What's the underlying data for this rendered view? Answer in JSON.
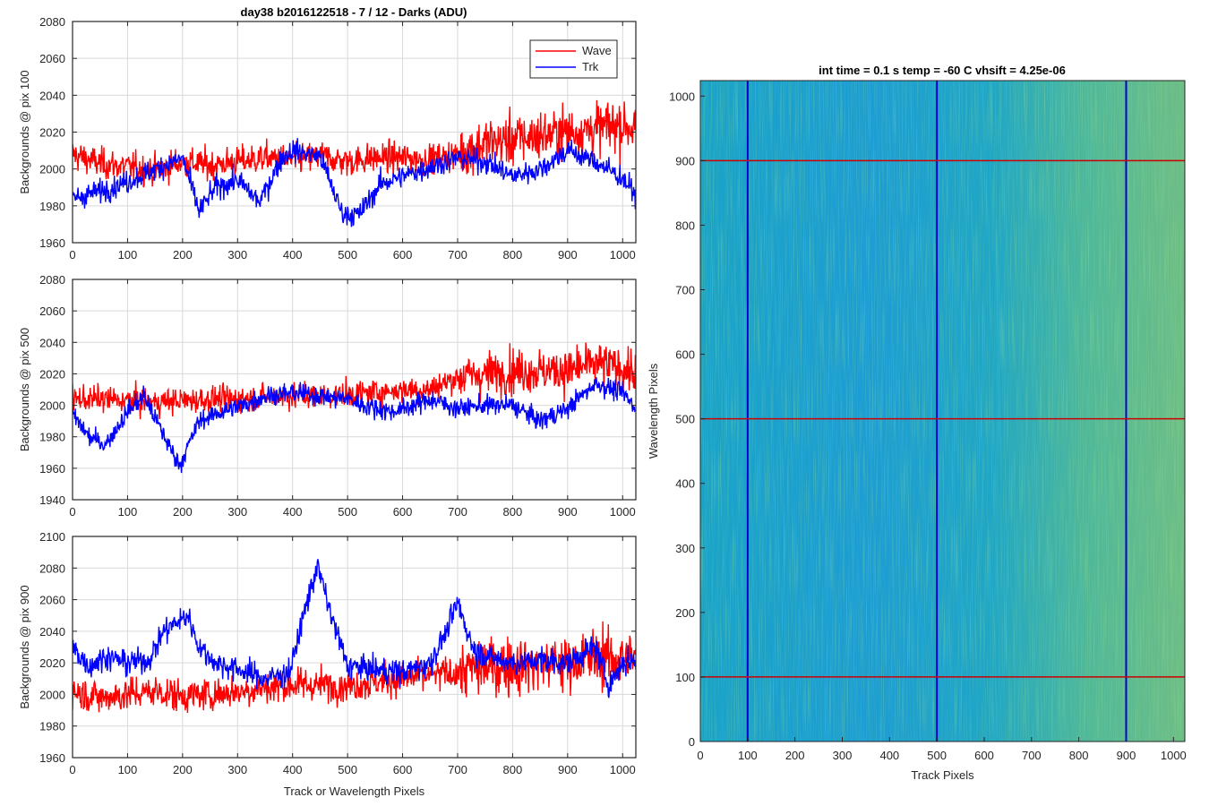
{
  "figure": {
    "main_title": "day38 b2016122518 - 7 / 12 - Darks (ADU)",
    "image_title": "int time = 0.1 s   temp = -60 C   vhsift = 4.25e-06"
  },
  "colors": {
    "wave": "#ff0000",
    "trk": "#0000ff",
    "grid": "#d9d9d9",
    "axis": "#262626"
  },
  "chart_data": [
    {
      "type": "line",
      "title": "day38 b2016122518 - 7 / 12 - Darks (ADU)",
      "xlabel": "",
      "ylabel": "Backgrounds @ pix 100",
      "xlim": [
        0,
        1024
      ],
      "ylim": [
        1960,
        2080
      ],
      "xticks": [
        0,
        100,
        200,
        300,
        400,
        500,
        600,
        700,
        800,
        900,
        1000
      ],
      "yticks": [
        1960,
        1980,
        2000,
        2020,
        2040,
        2060,
        2080
      ],
      "grid": true,
      "legend": {
        "position": "top-right",
        "entries": [
          "Wave",
          "Trk"
        ]
      },
      "series": [
        {
          "name": "Wave",
          "color": "#ff0000",
          "points": [
            [
              0,
              2008
            ],
            [
              50,
              2003
            ],
            [
              100,
              2001
            ],
            [
              150,
              1999
            ],
            [
              200,
              2004
            ],
            [
              250,
              2002
            ],
            [
              300,
              2004
            ],
            [
              350,
              2006
            ],
            [
              400,
              2005
            ],
            [
              450,
              2007
            ],
            [
              500,
              2004
            ],
            [
              550,
              2006
            ],
            [
              600,
              2006
            ],
            [
              650,
              2005
            ],
            [
              700,
              2008
            ],
            [
              750,
              2014
            ],
            [
              800,
              2016
            ],
            [
              850,
              2018
            ],
            [
              900,
              2020
            ],
            [
              950,
              2022
            ],
            [
              1000,
              2024
            ],
            [
              1024,
              2022
            ]
          ]
        },
        {
          "name": "Trk",
          "color": "#0000ff",
          "points": [
            [
              0,
              1984
            ],
            [
              50,
              1988
            ],
            [
              100,
              1993
            ],
            [
              150,
              2000
            ],
            [
              200,
              2006
            ],
            [
              230,
              1977
            ],
            [
              260,
              1990
            ],
            [
              300,
              1994
            ],
            [
              340,
              1982
            ],
            [
              380,
              2006
            ],
            [
              400,
              2010
            ],
            [
              450,
              2007
            ],
            [
              490,
              1976
            ],
            [
              520,
              1975
            ],
            [
              560,
              1992
            ],
            [
              600,
              1996
            ],
            [
              650,
              2001
            ],
            [
              700,
              2006
            ],
            [
              750,
              2004
            ],
            [
              800,
              1996
            ],
            [
              850,
              2000
            ],
            [
              900,
              2010
            ],
            [
              950,
              2004
            ],
            [
              1000,
              1995
            ],
            [
              1024,
              1986
            ]
          ]
        }
      ]
    },
    {
      "type": "line",
      "title": "",
      "xlabel": "",
      "ylabel": "Backgrounds @ pix 500",
      "xlim": [
        0,
        1024
      ],
      "ylim": [
        1940,
        2080
      ],
      "xticks": [
        0,
        100,
        200,
        300,
        400,
        500,
        600,
        700,
        800,
        900,
        1000
      ],
      "yticks": [
        1940,
        1960,
        1980,
        2000,
        2020,
        2040,
        2060,
        2080
      ],
      "grid": true,
      "series": [
        {
          "name": "Wave",
          "color": "#ff0000",
          "points": [
            [
              0,
              2004
            ],
            [
              50,
              2004
            ],
            [
              100,
              2003
            ],
            [
              150,
              2002
            ],
            [
              200,
              2003
            ],
            [
              250,
              2004
            ],
            [
              300,
              2004
            ],
            [
              350,
              2005
            ],
            [
              400,
              2006
            ],
            [
              450,
              2006
            ],
            [
              500,
              2007
            ],
            [
              550,
              2008
            ],
            [
              600,
              2010
            ],
            [
              650,
              2010
            ],
            [
              700,
              2018
            ],
            [
              750,
              2020
            ],
            [
              800,
              2022
            ],
            [
              850,
              2022
            ],
            [
              900,
              2022
            ],
            [
              950,
              2026
            ],
            [
              1000,
              2024
            ],
            [
              1024,
              2020
            ]
          ]
        },
        {
          "name": "Trk",
          "color": "#0000ff",
          "points": [
            [
              0,
              1994
            ],
            [
              30,
              1980
            ],
            [
              60,
              1975
            ],
            [
              100,
              1996
            ],
            [
              130,
              2006
            ],
            [
              170,
              1978
            ],
            [
              195,
              1962
            ],
            [
              230,
              1990
            ],
            [
              270,
              1996
            ],
            [
              310,
              2000
            ],
            [
              350,
              2006
            ],
            [
              400,
              2008
            ],
            [
              450,
              2006
            ],
            [
              500,
              2004
            ],
            [
              530,
              2000
            ],
            [
              580,
              1996
            ],
            [
              620,
              2000
            ],
            [
              650,
              2004
            ],
            [
              700,
              1998
            ],
            [
              750,
              2000
            ],
            [
              800,
              2000
            ],
            [
              850,
              1990
            ],
            [
              900,
              1998
            ],
            [
              950,
              2014
            ],
            [
              1000,
              2008
            ],
            [
              1024,
              1998
            ]
          ]
        }
      ]
    },
    {
      "type": "line",
      "title": "",
      "xlabel": "Track or Wavelength Pixels",
      "ylabel": "Backgrounds @ pix 900",
      "xlim": [
        0,
        1024
      ],
      "ylim": [
        1960,
        2100
      ],
      "xticks": [
        0,
        100,
        200,
        300,
        400,
        500,
        600,
        700,
        800,
        900,
        1000
      ],
      "yticks": [
        1960,
        1980,
        2000,
        2020,
        2040,
        2060,
        2080,
        2100
      ],
      "grid": true,
      "series": [
        {
          "name": "Wave",
          "color": "#ff0000",
          "points": [
            [
              0,
              2002
            ],
            [
              50,
              1998
            ],
            [
              100,
              2000
            ],
            [
              150,
              2002
            ],
            [
              200,
              1999
            ],
            [
              250,
              2000
            ],
            [
              300,
              2002
            ],
            [
              350,
              2004
            ],
            [
              400,
              2006
            ],
            [
              450,
              2006
            ],
            [
              500,
              2006
            ],
            [
              550,
              2008
            ],
            [
              600,
              2010
            ],
            [
              650,
              2012
            ],
            [
              700,
              2014
            ],
            [
              750,
              2018
            ],
            [
              800,
              2018
            ],
            [
              850,
              2020
            ],
            [
              900,
              2020
            ],
            [
              950,
              2024
            ],
            [
              1000,
              2022
            ],
            [
              1024,
              2024
            ]
          ]
        },
        {
          "name": "Trk",
          "color": "#0000ff",
          "points": [
            [
              0,
              2030
            ],
            [
              30,
              2018
            ],
            [
              60,
              2024
            ],
            [
              100,
              2020
            ],
            [
              140,
              2022
            ],
            [
              165,
              2040
            ],
            [
              210,
              2050
            ],
            [
              230,
              2030
            ],
            [
              260,
              2020
            ],
            [
              300,
              2016
            ],
            [
              350,
              2010
            ],
            [
              395,
              2014
            ],
            [
              420,
              2050
            ],
            [
              445,
              2082
            ],
            [
              470,
              2050
            ],
            [
              500,
              2018
            ],
            [
              550,
              2016
            ],
            [
              600,
              2014
            ],
            [
              650,
              2020
            ],
            [
              680,
              2040
            ],
            [
              700,
              2058
            ],
            [
              730,
              2028
            ],
            [
              770,
              2022
            ],
            [
              810,
              2020
            ],
            [
              850,
              2022
            ],
            [
              900,
              2020
            ],
            [
              950,
              2030
            ],
            [
              975,
              2006
            ],
            [
              1000,
              2020
            ],
            [
              1024,
              2022
            ]
          ]
        }
      ]
    },
    {
      "type": "heatmap",
      "title": "int time = 0.1 s   temp = -60 C   vhsift = 4.25e-06",
      "xlabel": "Track Pixels",
      "ylabel": "Wavelength Pixels",
      "xlim": [
        0,
        1024
      ],
      "ylim": [
        0,
        1024
      ],
      "xticks": [
        0,
        100,
        200,
        300,
        400,
        500,
        600,
        700,
        800,
        900,
        1000
      ],
      "yticks": [
        0,
        100,
        200,
        300,
        400,
        500,
        600,
        700,
        800,
        900,
        1000
      ],
      "colormap": "parula",
      "vertical_markers": [
        100,
        500,
        900
      ],
      "horizontal_markers": [
        100,
        500,
        900
      ],
      "vertical_marker_color": "#0000cc",
      "horizontal_marker_color": "#cc0000"
    }
  ]
}
